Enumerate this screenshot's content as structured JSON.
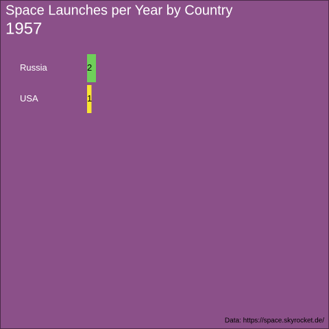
{
  "chart_data": {
    "type": "bar",
    "orientation": "horizontal",
    "title": "Space Launches per Year by Country",
    "subtitle": "1957",
    "categories": [
      "Russia",
      "USA"
    ],
    "values": [
      2,
      1
    ],
    "colors": [
      "#6fcf5a",
      "#f9e432"
    ],
    "caption": "Data: https://space.skyrocket.de/"
  }
}
